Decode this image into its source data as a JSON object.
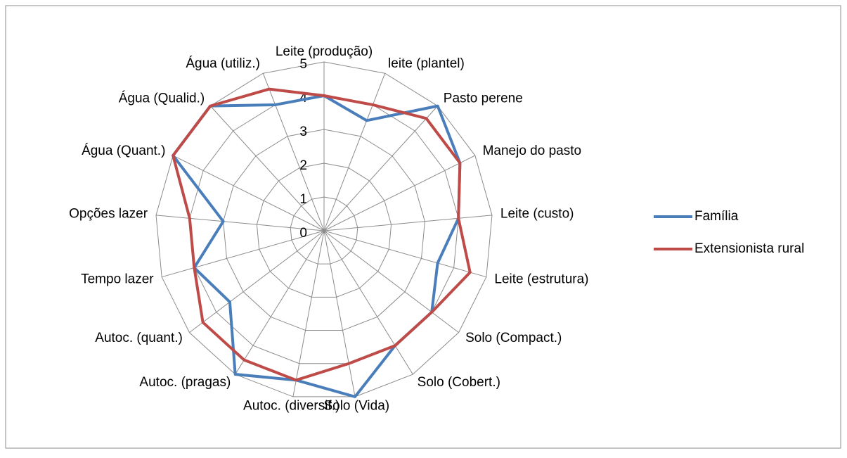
{
  "chart_data": {
    "type": "radar",
    "categories": [
      "Leite (produção)",
      "leite (plantel)",
      "Pasto perene",
      "Manejo do pasto",
      "Leite (custo)",
      "Leite (estrutura)",
      "Solo (Compact.)",
      "Solo (Cobert.)",
      "Solo (Vida)",
      "Autoc. (diversif.)",
      "Autoc. (pragas)",
      "Autoc. (quant.)",
      "Tempo lazer",
      "Opções lazer",
      "Água (Quant.)",
      "Água (Qualid.)",
      "Água (utiliz.)"
    ],
    "series": [
      {
        "name": "Família",
        "color": "#4a7ebb",
        "values": [
          4,
          3.5,
          5,
          4.5,
          4,
          3.5,
          4,
          4,
          5,
          4.5,
          5,
          3.5,
          4,
          3,
          5,
          5,
          4
        ]
      },
      {
        "name": "Extensionista rural",
        "color": "#be4b48",
        "values": [
          4,
          4,
          4.5,
          4.5,
          4,
          4.5,
          4,
          4,
          4,
          4.5,
          4.5,
          4.5,
          4,
          4,
          5,
          5,
          4.5
        ]
      }
    ],
    "ylim": [
      0,
      5
    ],
    "yticks": [
      0,
      1,
      2,
      3,
      4,
      5
    ],
    "grid": true,
    "legend": "right"
  }
}
